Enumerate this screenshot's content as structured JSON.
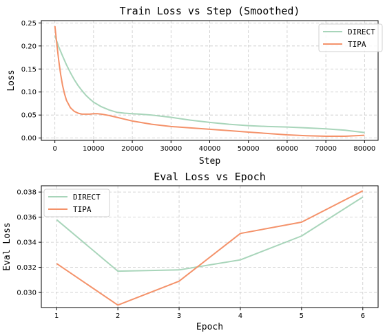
{
  "colors": {
    "direct": "#a8d5ba",
    "tipa": "#f4926a"
  },
  "chart_data": [
    {
      "type": "line",
      "title": "Train Loss vs Step (Smoothed)",
      "xlabel": "Step",
      "ylabel": "Loss",
      "xlim": [
        -3500,
        83500
      ],
      "ylim": [
        -0.005,
        0.255
      ],
      "xticks": [
        0,
        10000,
        20000,
        30000,
        40000,
        50000,
        60000,
        70000,
        80000
      ],
      "xtick_labels": [
        "0",
        "10000",
        "20000",
        "30000",
        "40000",
        "50000",
        "60000",
        "70000",
        "80000"
      ],
      "yticks": [
        0.0,
        0.05,
        0.1,
        0.15,
        0.2,
        0.25
      ],
      "ytick_labels": [
        "0.00",
        "0.05",
        "0.10",
        "0.15",
        "0.20",
        "0.25"
      ],
      "grid": true,
      "legend_position": "top-right",
      "series": [
        {
          "name": "DIRECT",
          "color": "#a8d5ba",
          "x": [
            0,
            1000,
            2000,
            3000,
            4000,
            5000,
            6000,
            7000,
            8000,
            9000,
            10000,
            12000,
            14000,
            16000,
            18000,
            20000,
            22000,
            25000,
            30000,
            35000,
            40000,
            45000,
            50000,
            55000,
            60000,
            65000,
            70000,
            75000,
            80000
          ],
          "y": [
            0.222,
            0.198,
            0.178,
            0.159,
            0.142,
            0.127,
            0.114,
            0.103,
            0.093,
            0.085,
            0.078,
            0.068,
            0.061,
            0.056,
            0.054,
            0.053,
            0.052,
            0.05,
            0.045,
            0.039,
            0.034,
            0.03,
            0.027,
            0.025,
            0.024,
            0.022,
            0.02,
            0.017,
            0.012
          ]
        },
        {
          "name": "TIPA",
          "color": "#f4926a",
          "x": [
            0,
            500,
            1000,
            1500,
            2000,
            2500,
            3000,
            4000,
            5000,
            6000,
            7000,
            8000,
            9000,
            10000,
            11000,
            12000,
            14000,
            16000,
            18000,
            20000,
            25000,
            30000,
            35000,
            40000,
            45000,
            50000,
            55000,
            60000,
            65000,
            70000,
            75000,
            80000
          ],
          "y": [
            0.243,
            0.205,
            0.168,
            0.138,
            0.114,
            0.096,
            0.082,
            0.066,
            0.058,
            0.054,
            0.052,
            0.052,
            0.052,
            0.053,
            0.053,
            0.052,
            0.049,
            0.045,
            0.041,
            0.037,
            0.03,
            0.025,
            0.022,
            0.019,
            0.016,
            0.013,
            0.01,
            0.007,
            0.005,
            0.004,
            0.004,
            0.006
          ]
        }
      ]
    },
    {
      "type": "line",
      "title": "Eval Loss vs Epoch",
      "xlabel": "Epoch",
      "ylabel": "Eval Loss",
      "xlim": [
        0.75,
        6.25
      ],
      "ylim": [
        0.0288,
        0.0385
      ],
      "xticks": [
        1,
        2,
        3,
        4,
        5,
        6
      ],
      "xtick_labels": [
        "1",
        "2",
        "3",
        "4",
        "5",
        "6"
      ],
      "yticks": [
        0.03,
        0.032,
        0.034,
        0.036,
        0.038
      ],
      "ytick_labels": [
        "0.030",
        "0.032",
        "0.034",
        "0.036",
        "0.038"
      ],
      "grid": true,
      "legend_position": "top-left",
      "series": [
        {
          "name": "DIRECT",
          "color": "#a8d5ba",
          "x": [
            1,
            2,
            3,
            4,
            5,
            6
          ],
          "y": [
            0.0358,
            0.0317,
            0.0318,
            0.0326,
            0.0345,
            0.0376
          ]
        },
        {
          "name": "TIPA",
          "color": "#f4926a",
          "x": [
            1,
            2,
            3,
            4,
            5,
            6
          ],
          "y": [
            0.0323,
            0.029,
            0.0309,
            0.0347,
            0.0356,
            0.0381
          ]
        }
      ]
    }
  ]
}
